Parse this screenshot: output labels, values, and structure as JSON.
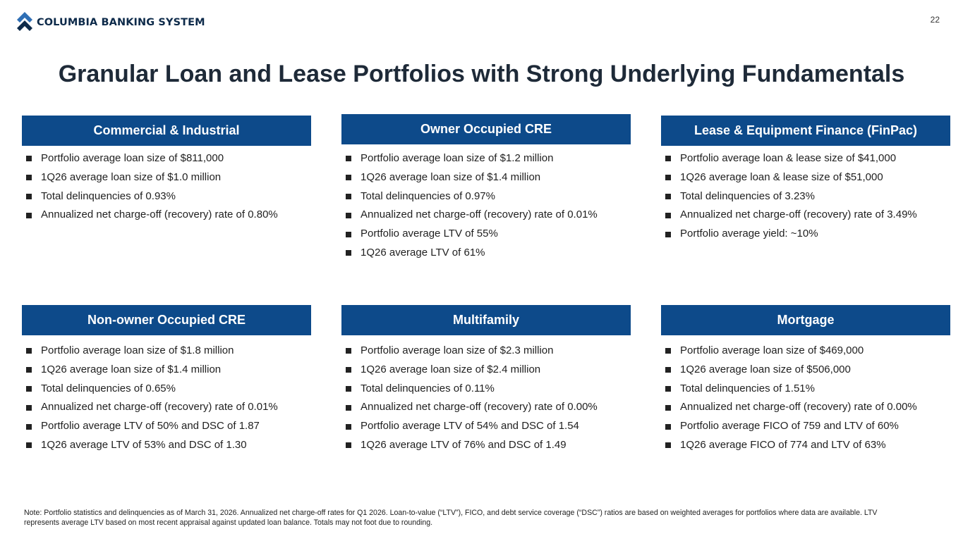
{
  "header": {
    "logo_text": "COLUMBIA BANKING SYSTEM",
    "page_number": "22"
  },
  "title": "Granular Loan and Lease Portfolios with Strong Underlying Fundamentals",
  "cards": [
    {
      "title": "Commercial & Industrial",
      "items": [
        "Portfolio average loan size of $811,000",
        "1Q26 average loan size of $1.0 million",
        "Total delinquencies of 0.93%",
        "Annualized net charge-off (recovery) rate of 0.80%"
      ]
    },
    {
      "title": "Owner Occupied CRE",
      "items": [
        "Portfolio average loan size of $1.2 million",
        "1Q26 average loan size of $1.4 million",
        "Total delinquencies of 0.97%",
        "Annualized net charge-off (recovery) rate of 0.01%",
        "Portfolio average LTV of 55%",
        "1Q26 average LTV of 61%"
      ]
    },
    {
      "title": "Lease & Equipment Finance (FinPac)",
      "items": [
        "Portfolio average loan & lease size of $41,000",
        "1Q26 average loan & lease size of $51,000",
        "Total delinquencies of 3.23%",
        "Annualized net charge-off (recovery) rate of 3.49%",
        "Portfolio average yield: ~10%"
      ]
    },
    {
      "title": "Non-owner Occupied CRE",
      "items": [
        "Portfolio average loan size of $1.8 million",
        "1Q26 average loan size of $1.4 million",
        "Total delinquencies of 0.65%",
        "Annualized net charge-off (recovery) rate of 0.01%",
        "Portfolio average LTV of 50% and DSC of 1.87",
        "1Q26 average LTV of 53% and DSC of 1.30"
      ]
    },
    {
      "title": "Multifamily",
      "items": [
        "Portfolio average loan size of $2.3 million",
        "1Q26 average loan size of $2.4 million",
        "Total delinquencies of 0.11%",
        "Annualized net charge-off (recovery) rate of 0.00%",
        "Portfolio average LTV of 54% and DSC of 1.54",
        "1Q26 average LTV of 76% and DSC of 1.49"
      ]
    },
    {
      "title": "Mortgage",
      "items": [
        "Portfolio average loan size of $469,000",
        "1Q26 average loan size of $506,000",
        "Total delinquencies of 1.51%",
        "Annualized net charge-off (recovery) rate of 0.00%",
        "Portfolio average FICO of 759 and LTV of 60%",
        "1Q26 average FICO of 774 and LTV of 63%"
      ]
    }
  ],
  "note": "Note: Portfolio statistics and delinquencies as of March 31, 2026. Annualized net charge-off rates for Q1 2026. Loan-to-value (“LTV”), FICO, and debt service coverage (“DSC”) ratios are based on weighted averages for portfolios where data are available. LTV represents average LTV based on most recent appraisal against updated loan balance.  Totals may not foot due to rounding."
}
